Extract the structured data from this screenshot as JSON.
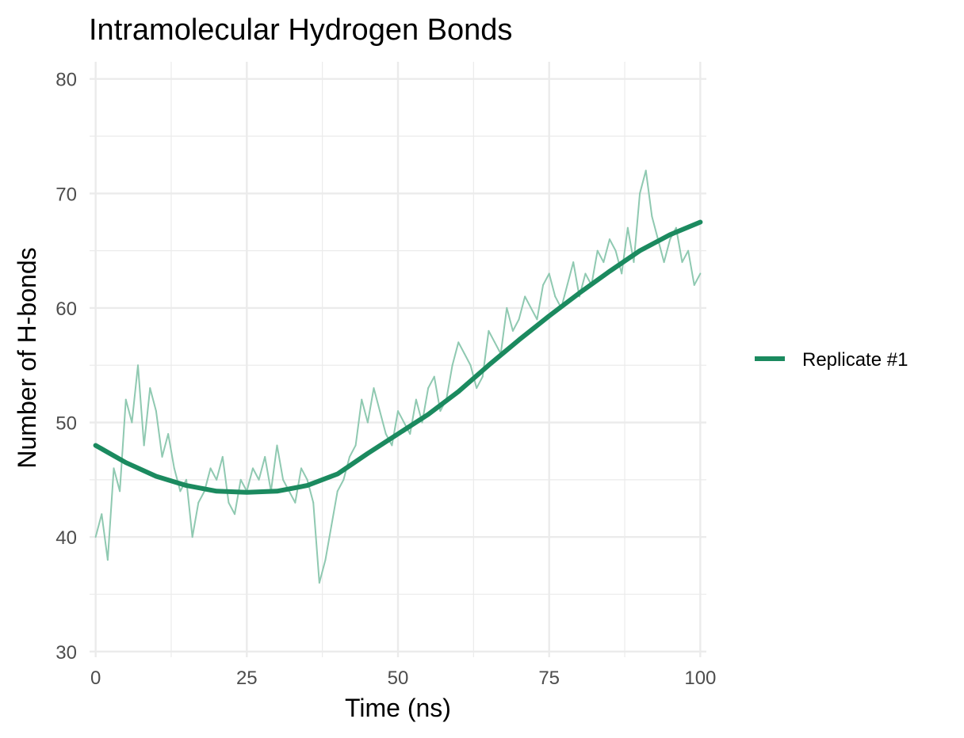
{
  "chart_data": {
    "type": "line",
    "title": "Intramolecular Hydrogen Bonds",
    "xlabel": "Time (ns)",
    "ylabel": "Number of H-bonds",
    "xlim": [
      -1,
      101
    ],
    "ylim": [
      29.5,
      81.5
    ],
    "x_ticks": [
      0,
      25,
      50,
      75,
      100
    ],
    "y_ticks": [
      30,
      40,
      50,
      60,
      70,
      80
    ],
    "grid": true,
    "legend_position": "right",
    "colors": {
      "line": "#1b8a5f",
      "raw": "#8fc9b1",
      "grid": "#ebebeb"
    },
    "series": [
      {
        "name": "Replicate #1",
        "kind": "smoothed",
        "x": [
          0,
          5,
          10,
          15,
          20,
          25,
          30,
          35,
          40,
          45,
          50,
          55,
          60,
          65,
          70,
          75,
          80,
          85,
          90,
          95,
          100
        ],
        "y": [
          48,
          46.5,
          45.3,
          44.5,
          44,
          43.9,
          44,
          44.5,
          45.5,
          47.3,
          49,
          50.7,
          52.7,
          55,
          57.2,
          59.3,
          61.3,
          63.2,
          65,
          66.4,
          67.5
        ]
      },
      {
        "kind": "raw",
        "x": [
          0,
          1,
          2,
          3,
          4,
          5,
          6,
          7,
          8,
          9,
          10,
          11,
          12,
          13,
          14,
          15,
          16,
          17,
          18,
          19,
          20,
          21,
          22,
          23,
          24,
          25,
          26,
          27,
          28,
          29,
          30,
          31,
          32,
          33,
          34,
          35,
          36,
          37,
          38,
          39,
          40,
          41,
          42,
          43,
          44,
          45,
          46,
          47,
          48,
          49,
          50,
          51,
          52,
          53,
          54,
          55,
          56,
          57,
          58,
          59,
          60,
          61,
          62,
          63,
          64,
          65,
          66,
          67,
          68,
          69,
          70,
          71,
          72,
          73,
          74,
          75,
          76,
          77,
          78,
          79,
          80,
          81,
          82,
          83,
          84,
          85,
          86,
          87,
          88,
          89,
          90,
          91,
          92,
          93,
          94,
          95,
          96,
          97,
          98,
          99,
          100
        ],
        "y": [
          40,
          42,
          38,
          46,
          44,
          52,
          50,
          55,
          48,
          53,
          51,
          47,
          49,
          46,
          44,
          45,
          40,
          43,
          44,
          46,
          45,
          47,
          43,
          42,
          45,
          44,
          46,
          45,
          47,
          44,
          48,
          45,
          44,
          43,
          46,
          45,
          43,
          36,
          38,
          41,
          44,
          45,
          47,
          48,
          52,
          50,
          53,
          51,
          49,
          48,
          51,
          50,
          49,
          52,
          50,
          53,
          54,
          51,
          52,
          55,
          57,
          56,
          55,
          53,
          54,
          58,
          57,
          56,
          60,
          58,
          59,
          61,
          60,
          59,
          62,
          63,
          61,
          60,
          62,
          64,
          61,
          63,
          62,
          65,
          64,
          66,
          65,
          63,
          67,
          64,
          70,
          72,
          68,
          66,
          64,
          66,
          67,
          64,
          65,
          62,
          63
        ]
      }
    ]
  }
}
